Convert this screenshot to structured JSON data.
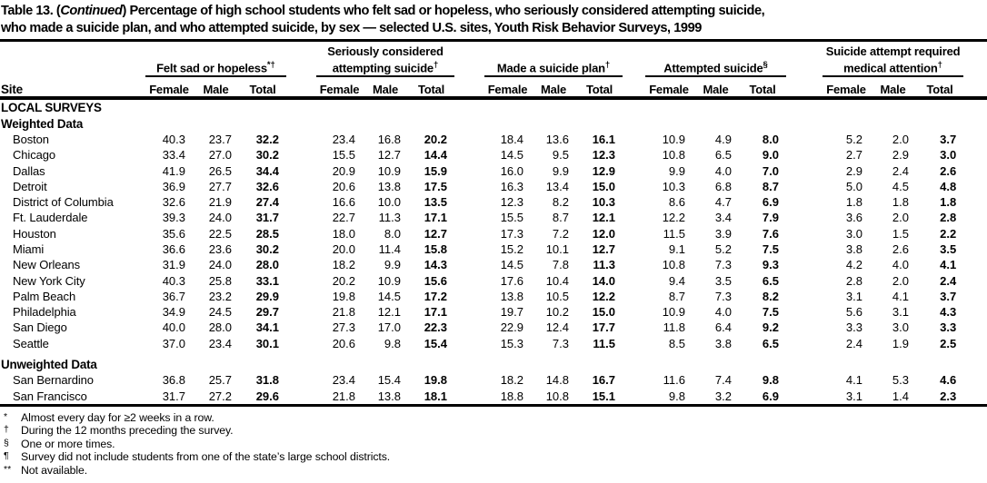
{
  "title": {
    "line1_prefix": "Table 13. (",
    "continued": "Continued",
    "line1_rest": ") Percentage of high school students who felt sad or hopeless, who seriously considered attempting suicide,",
    "line2": "who made a suicide plan, and who attempted suicide, by sex — selected U.S. sites, Youth Risk Behavior Surveys, 1999"
  },
  "table": {
    "site_header": "Site",
    "groups": [
      {
        "label": "Felt sad or hopeless",
        "marker": "*†"
      },
      {
        "label": "Seriously considered attempting suicide",
        "marker": "†"
      },
      {
        "label": "Made a suicide plan",
        "marker": "†"
      },
      {
        "label": "Attempted suicide",
        "marker": "§"
      },
      {
        "label": "Suicide attempt required medical attention",
        "marker": "†"
      }
    ],
    "subheaders": [
      "Female",
      "Male",
      "Total"
    ],
    "sections": [
      {
        "label": "LOCAL SURVEYS",
        "rows": []
      },
      {
        "label": "Weighted Data",
        "rows": [
          {
            "site": "Boston",
            "values": [
              "40.3",
              "23.7",
              "32.2",
              "23.4",
              "16.8",
              "20.2",
              "18.4",
              "13.6",
              "16.1",
              "10.9",
              "4.9",
              "8.0",
              "5.2",
              "2.0",
              "3.7"
            ]
          },
          {
            "site": "Chicago",
            "values": [
              "33.4",
              "27.0",
              "30.2",
              "15.5",
              "12.7",
              "14.4",
              "14.5",
              "9.5",
              "12.3",
              "10.8",
              "6.5",
              "9.0",
              "2.7",
              "2.9",
              "3.0"
            ]
          },
          {
            "site": "Dallas",
            "values": [
              "41.9",
              "26.5",
              "34.4",
              "20.9",
              "10.9",
              "15.9",
              "16.0",
              "9.9",
              "12.9",
              "9.9",
              "4.0",
              "7.0",
              "2.9",
              "2.4",
              "2.6"
            ]
          },
          {
            "site": "Detroit",
            "values": [
              "36.9",
              "27.7",
              "32.6",
              "20.6",
              "13.8",
              "17.5",
              "16.3",
              "13.4",
              "15.0",
              "10.3",
              "6.8",
              "8.7",
              "5.0",
              "4.5",
              "4.8"
            ]
          },
          {
            "site": "District of Columbia",
            "values": [
              "32.6",
              "21.9",
              "27.4",
              "16.6",
              "10.0",
              "13.5",
              "12.3",
              "8.2",
              "10.3",
              "8.6",
              "4.7",
              "6.9",
              "1.8",
              "1.8",
              "1.8"
            ]
          },
          {
            "site": "Ft. Lauderdale",
            "values": [
              "39.3",
              "24.0",
              "31.7",
              "22.7",
              "11.3",
              "17.1",
              "15.5",
              "8.7",
              "12.1",
              "12.2",
              "3.4",
              "7.9",
              "3.6",
              "2.0",
              "2.8"
            ]
          },
          {
            "site": "Houston",
            "values": [
              "35.6",
              "22.5",
              "28.5",
              "18.0",
              "8.0",
              "12.7",
              "17.3",
              "7.2",
              "12.0",
              "11.5",
              "3.9",
              "7.6",
              "3.0",
              "1.5",
              "2.2"
            ]
          },
          {
            "site": "Miami",
            "values": [
              "36.6",
              "23.6",
              "30.2",
              "20.0",
              "11.4",
              "15.8",
              "15.2",
              "10.1",
              "12.7",
              "9.1",
              "5.2",
              "7.5",
              "3.8",
              "2.6",
              "3.5"
            ]
          },
          {
            "site": "New Orleans",
            "values": [
              "31.9",
              "24.0",
              "28.0",
              "18.2",
              "9.9",
              "14.3",
              "14.5",
              "7.8",
              "11.3",
              "10.8",
              "7.3",
              "9.3",
              "4.2",
              "4.0",
              "4.1"
            ]
          },
          {
            "site": "New York City",
            "values": [
              "40.3",
              "25.8",
              "33.1",
              "20.2",
              "10.9",
              "15.6",
              "17.6",
              "10.4",
              "14.0",
              "9.4",
              "3.5",
              "6.5",
              "2.8",
              "2.0",
              "2.4"
            ]
          },
          {
            "site": "Palm Beach",
            "values": [
              "36.7",
              "23.2",
              "29.9",
              "19.8",
              "14.5",
              "17.2",
              "13.8",
              "10.5",
              "12.2",
              "8.7",
              "7.3",
              "8.2",
              "3.1",
              "4.1",
              "3.7"
            ]
          },
          {
            "site": "Philadelphia",
            "values": [
              "34.9",
              "24.5",
              "29.7",
              "21.8",
              "12.1",
              "17.1",
              "19.7",
              "10.2",
              "15.0",
              "10.9",
              "4.0",
              "7.5",
              "5.6",
              "3.1",
              "4.3"
            ]
          },
          {
            "site": "San Diego",
            "values": [
              "40.0",
              "28.0",
              "34.1",
              "27.3",
              "17.0",
              "22.3",
              "22.9",
              "12.4",
              "17.7",
              "11.8",
              "6.4",
              "9.2",
              "3.3",
              "3.0",
              "3.3"
            ]
          },
          {
            "site": "Seattle",
            "values": [
              "37.0",
              "23.4",
              "30.1",
              "20.6",
              "9.8",
              "15.4",
              "15.3",
              "7.3",
              "11.5",
              "8.5",
              "3.8",
              "6.5",
              "2.4",
              "1.9",
              "2.5"
            ]
          }
        ]
      },
      {
        "label": "Unweighted Data",
        "rows": [
          {
            "site": "San Bernardino",
            "values": [
              "36.8",
              "25.7",
              "31.8",
              "23.4",
              "15.4",
              "19.8",
              "18.2",
              "14.8",
              "16.7",
              "11.6",
              "7.4",
              "9.8",
              "4.1",
              "5.3",
              "4.6"
            ]
          },
          {
            "site": "San Francisco",
            "values": [
              "31.7",
              "27.2",
              "29.6",
              "21.8",
              "13.8",
              "18.1",
              "18.8",
              "10.8",
              "15.1",
              "9.8",
              "3.2",
              "6.9",
              "3.1",
              "1.4",
              "2.3"
            ]
          }
        ]
      }
    ]
  },
  "footnotes": [
    {
      "marker": "*",
      "text": "Almost every day for ≥2 weeks in a row."
    },
    {
      "marker": "†",
      "text": "During the 12 months preceding the survey."
    },
    {
      "marker": "§",
      "text": "One or more times."
    },
    {
      "marker": "¶",
      "text": "Survey did not include students from one of the state’s large school districts."
    },
    {
      "marker": "**",
      "text": "Not available."
    }
  ]
}
